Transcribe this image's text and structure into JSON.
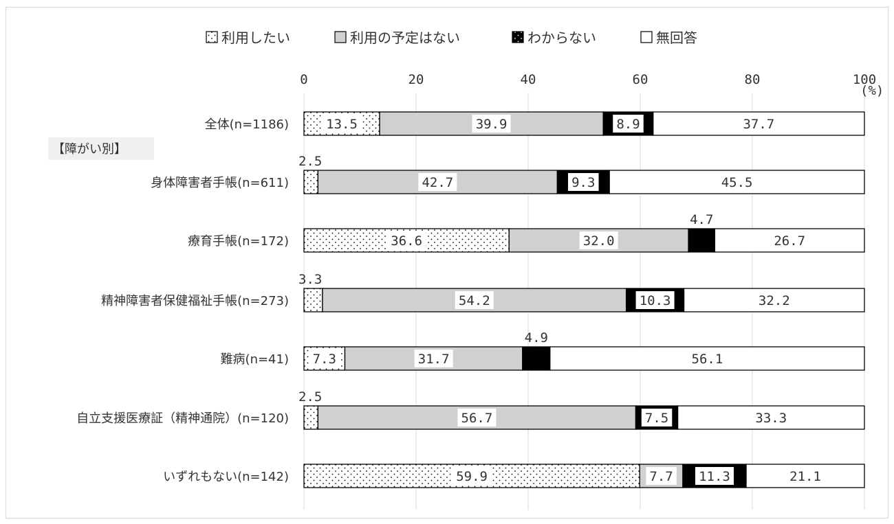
{
  "chart_data": {
    "type": "bar",
    "orientation": "horizontal",
    "stacked": true,
    "unit": "(%)",
    "xlim": [
      0,
      100
    ],
    "x_ticks": [
      "0",
      "20",
      "40",
      "60",
      "80",
      "100"
    ],
    "grid": true,
    "legend_position": "top",
    "group_label": "【障がい別】",
    "categories": [
      "全体(n=1186)",
      "身体障害者手帳(n=611)",
      "療育手帳(n=172)",
      "精神障害者保健福祉手帳(n=273)",
      "難病(n=41)",
      "自立支援医療証（精神通院）(n=120)",
      "いずれもない(n=142)"
    ],
    "series": [
      {
        "name": "利用したい",
        "pattern": "dots",
        "values": [
          13.5,
          2.5,
          36.6,
          3.3,
          7.3,
          2.5,
          59.9
        ]
      },
      {
        "name": "利用の予定はない",
        "color": "#d0d0d0",
        "values": [
          39.9,
          42.7,
          32.0,
          54.2,
          31.7,
          56.7,
          7.7
        ]
      },
      {
        "name": "わからない",
        "color": "#000000",
        "values": [
          8.9,
          9.3,
          4.7,
          10.3,
          4.9,
          7.5,
          11.3
        ]
      },
      {
        "name": "無回答",
        "color": "#ffffff",
        "values": [
          37.7,
          45.5,
          26.7,
          32.2,
          56.1,
          33.3,
          21.1
        ]
      }
    ]
  }
}
